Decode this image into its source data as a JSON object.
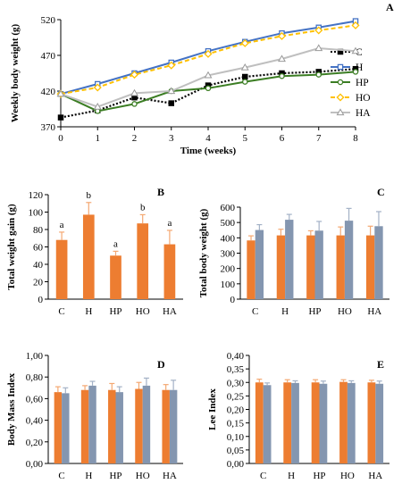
{
  "chart_data": [
    {
      "type": "line",
      "panel": "A",
      "xlabel": "Time (weeks)",
      "ylabel": "Weekly body weight (g)",
      "x": [
        0,
        1,
        2,
        3,
        4,
        5,
        6,
        7,
        8
      ],
      "ylim": [
        370,
        520
      ],
      "yticks": [
        370,
        420,
        470,
        520
      ],
      "legend": "right",
      "series": [
        {
          "name": "C",
          "color": "#000000",
          "dash": "2,2",
          "marker": "square",
          "values": [
            383,
            393,
            411,
            403,
            428,
            440,
            445,
            447,
            451
          ]
        },
        {
          "name": "H",
          "color": "#4472c4",
          "dash": "",
          "marker": "square",
          "values": [
            416,
            430,
            445,
            460,
            476,
            489,
            501,
            509,
            518
          ]
        },
        {
          "name": "HP",
          "color": "#3b7d23",
          "dash": "",
          "marker": "circle",
          "values": [
            416,
            392,
            402,
            420,
            424,
            433,
            441,
            443,
            447
          ]
        },
        {
          "name": "HO",
          "color": "#ffc000",
          "dash": "5,3",
          "marker": "diamond",
          "values": [
            416,
            425,
            443,
            456,
            472,
            487,
            497,
            505,
            512
          ]
        },
        {
          "name": "HA",
          "color": "#bfbfbf",
          "dash": "",
          "marker": "triangle",
          "values": [
            416,
            398,
            417,
            420,
            442,
            453,
            465,
            480,
            476
          ]
        }
      ]
    },
    {
      "type": "bar",
      "panel": "B",
      "ylabel": "Total weight gain (g)",
      "categories": [
        "C",
        "H",
        "HP",
        "HO",
        "HA"
      ],
      "ylim": [
        0,
        120
      ],
      "yticks": [
        "0",
        "20",
        "40",
        "60",
        "80",
        "100",
        "120"
      ],
      "series": [
        {
          "color": "#ed7d31",
          "values": [
            68,
            97,
            50,
            87,
            63
          ],
          "errors": [
            9,
            14,
            5,
            10,
            16
          ]
        }
      ],
      "annotations": [
        "a",
        "b",
        "a",
        "b",
        "a"
      ]
    },
    {
      "type": "bar",
      "panel": "C",
      "ylabel": "Total body weight (g)",
      "categories": [
        "C",
        "H",
        "HP",
        "HO",
        "HA"
      ],
      "ylim": [
        0,
        600
      ],
      "yticks": [
        "0",
        "100",
        "200",
        "300",
        "400",
        "500",
        "600"
      ],
      "series": [
        {
          "color": "#ed7d31",
          "values": [
            383,
            416,
            416,
            416,
            416
          ],
          "errors": [
            30,
            40,
            30,
            55,
            60
          ]
        },
        {
          "color": "#8496b0",
          "values": [
            451,
            518,
            447,
            512,
            476
          ],
          "errors": [
            35,
            35,
            60,
            80,
            95
          ]
        }
      ]
    },
    {
      "type": "bar",
      "panel": "D",
      "ylabel": "Body Mass Index",
      "categories": [
        "C",
        "H",
        "HP",
        "HO",
        "HA"
      ],
      "ylim": [
        0,
        1
      ],
      "yticks": [
        "0,00",
        "0,20",
        "0,40",
        "0,60",
        "0,80",
        "1,00"
      ],
      "series": [
        {
          "color": "#ed7d31",
          "values": [
            0.66,
            0.68,
            0.68,
            0.69,
            0.68
          ],
          "errors": [
            0.05,
            0.04,
            0.06,
            0.06,
            0.05
          ]
        },
        {
          "color": "#8496b0",
          "values": [
            0.65,
            0.72,
            0.66,
            0.72,
            0.68
          ],
          "errors": [
            0.05,
            0.04,
            0.05,
            0.07,
            0.09
          ]
        }
      ]
    },
    {
      "type": "bar",
      "panel": "E",
      "ylabel": "Lee Index",
      "categories": [
        "C",
        "H",
        "HP",
        "HO",
        "HA"
      ],
      "ylim": [
        0,
        0.4
      ],
      "yticks": [
        "0,00",
        "0,05",
        "0,10",
        "0,15",
        "0,20",
        "0,25",
        "0,30",
        "0,35",
        "0,40"
      ],
      "series": [
        {
          "color": "#ed7d31",
          "values": [
            0.3,
            0.3,
            0.3,
            0.302,
            0.3
          ],
          "errors": [
            0.012,
            0.01,
            0.01,
            0.008,
            0.008
          ]
        },
        {
          "color": "#8496b0",
          "values": [
            0.29,
            0.298,
            0.295,
            0.298,
            0.295
          ],
          "errors": [
            0.008,
            0.008,
            0.01,
            0.008,
            0.01
          ]
        }
      ]
    }
  ]
}
